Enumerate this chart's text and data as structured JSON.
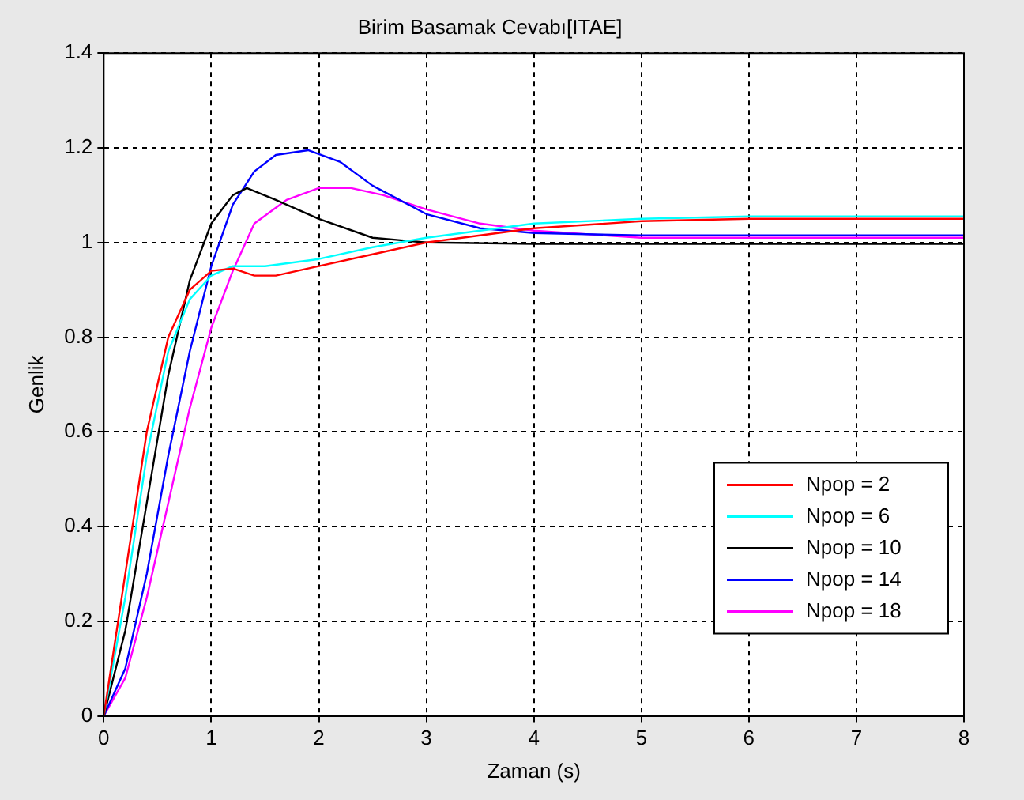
{
  "chart_data": {
    "type": "line",
    "title": "Birim Basamak Cevabı[ITAE]",
    "xlabel": "Zaman (s)",
    "ylabel": "Genlik",
    "xlim": [
      0,
      8
    ],
    "xticks": [
      0,
      1,
      2,
      3,
      4,
      5,
      6,
      7,
      8
    ],
    "ylim": [
      0,
      1.4
    ],
    "yticks": [
      0,
      0.2,
      0.4,
      0.6,
      0.8,
      1,
      1.2,
      1.4
    ],
    "grid": true,
    "legend": "bottom right",
    "marker": "none",
    "line_style": "solid",
    "series": [
      {
        "name": "Npop = 2",
        "color": "#ff0000",
        "x": [
          0,
          0.2,
          0.4,
          0.6,
          0.8,
          1,
          1.2,
          1.4,
          1.6,
          2,
          2.5,
          3,
          4,
          5,
          6,
          7,
          8
        ],
        "values": [
          0,
          0.3,
          0.6,
          0.8,
          0.9,
          0.94,
          0.945,
          0.93,
          0.93,
          0.95,
          0.975,
          1,
          1.03,
          1.045,
          1.05,
          1.05,
          1.05
        ]
      },
      {
        "name": "Npop = 6",
        "color": "#00ffff",
        "x": [
          0,
          0.2,
          0.4,
          0.6,
          0.8,
          1,
          1.2,
          1.5,
          2,
          2.5,
          3,
          4,
          5,
          6,
          8
        ],
        "values": [
          0,
          0.25,
          0.55,
          0.77,
          0.88,
          0.93,
          0.95,
          0.95,
          0.965,
          0.99,
          1.01,
          1.04,
          1.05,
          1.055,
          1.055
        ]
      },
      {
        "name": "Npop = 10",
        "color": "#000000",
        "x": [
          0,
          0.2,
          0.4,
          0.6,
          0.8,
          1,
          1.2,
          1.33,
          1.6,
          2,
          2.5,
          3,
          4,
          8
        ],
        "values": [
          0,
          0.18,
          0.45,
          0.72,
          0.92,
          1.04,
          1.1,
          1.115,
          1.09,
          1.05,
          1.01,
          1,
          0.997,
          0.997
        ]
      },
      {
        "name": "Npop = 14",
        "color": "#0000ff",
        "x": [
          0,
          0.2,
          0.4,
          0.6,
          0.8,
          1,
          1.2,
          1.4,
          1.6,
          1.9,
          2.2,
          2.5,
          3,
          3.5,
          4,
          5,
          8
        ],
        "values": [
          0,
          0.1,
          0.3,
          0.55,
          0.77,
          0.95,
          1.08,
          1.15,
          1.185,
          1.195,
          1.17,
          1.12,
          1.06,
          1.03,
          1.02,
          1.015,
          1.015
        ]
      },
      {
        "name": "Npop = 18",
        "color": "#ff00ff",
        "x": [
          0,
          0.2,
          0.4,
          0.6,
          0.8,
          1,
          1.2,
          1.4,
          1.7,
          2,
          2.3,
          2.6,
          3,
          3.5,
          4,
          5,
          6,
          8
        ],
        "values": [
          0,
          0.08,
          0.25,
          0.45,
          0.65,
          0.82,
          0.94,
          1.04,
          1.09,
          1.115,
          1.115,
          1.1,
          1.07,
          1.04,
          1.025,
          1.01,
          1.01,
          1.01
        ]
      }
    ]
  }
}
